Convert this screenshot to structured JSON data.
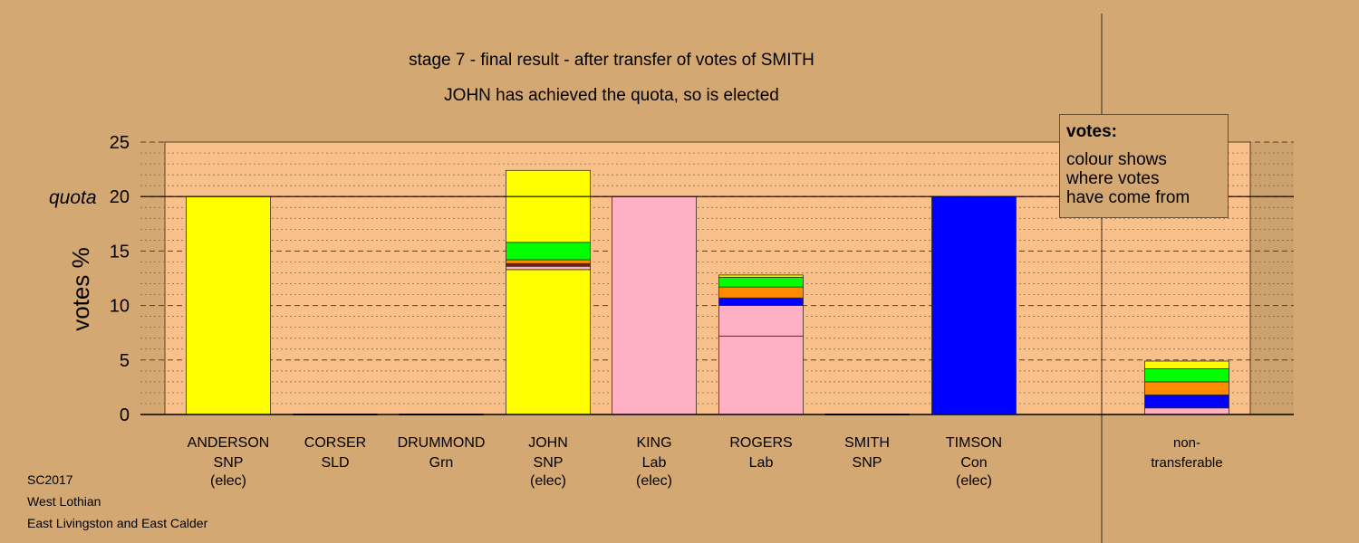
{
  "titles": {
    "line1": "stage 7 - final result - after transfer of votes of SMITH",
    "line2": "JOHN has achieved the quota, so is elected"
  },
  "legend": {
    "title": "votes:",
    "lines": [
      "colour shows",
      "where votes",
      "have come from"
    ]
  },
  "footer": {
    "line1": "SC2017",
    "line2": "West Lothian",
    "line3": "East Livingston and East Calder"
  },
  "colors": {
    "background": "#d4a873",
    "plot_background": "#f8c08a",
    "snp": "#ffff00",
    "lab": "#ffb0c4",
    "con": "#0000ff",
    "grn": "#00ff00",
    "sld": "#ff8c00",
    "other": "#8b1a1a"
  },
  "chart_data": {
    "type": "bar",
    "stacked": true,
    "ylabel": "votes %",
    "ylim": [
      0,
      25
    ],
    "yticks": [
      0,
      5,
      10,
      15,
      20,
      25
    ],
    "quota": {
      "value": 20,
      "label": "quota"
    },
    "grid": true,
    "legend_position": "top-right",
    "candidates": [
      {
        "name": "ANDERSON",
        "party": "SNP",
        "status": "(elec)",
        "segments": [
          {
            "color": "snp",
            "value": 20.0
          }
        ]
      },
      {
        "name": "CORSER",
        "party": "SLD",
        "status": "",
        "segments": []
      },
      {
        "name": "DRUMMOND",
        "party": "Grn",
        "status": "",
        "segments": []
      },
      {
        "name": "JOHN",
        "party": "SNP",
        "status": "(elec)",
        "segments": [
          {
            "color": "snp",
            "value": 13.3
          },
          {
            "color": "lab",
            "value": 0.3
          },
          {
            "color": "other",
            "value": 0.2
          },
          {
            "color": "con",
            "value": 0.05
          },
          {
            "color": "sld",
            "value": 0.35
          },
          {
            "color": "grn",
            "value": 1.6
          },
          {
            "color": "snp",
            "value": 6.6
          }
        ]
      },
      {
        "name": "KING",
        "party": "Lab",
        "status": "(elec)",
        "segments": [
          {
            "color": "lab",
            "value": 20.0
          }
        ]
      },
      {
        "name": "ROGERS",
        "party": "Lab",
        "status": "",
        "segments": [
          {
            "color": "lab",
            "value": 7.2
          },
          {
            "color": "lab",
            "value": 2.8
          },
          {
            "color": "con",
            "value": 0.7
          },
          {
            "color": "sld",
            "value": 1.0
          },
          {
            "color": "grn",
            "value": 0.9
          },
          {
            "color": "snp",
            "value": 0.2
          }
        ]
      },
      {
        "name": "SMITH",
        "party": "SNP",
        "status": "",
        "segments": []
      },
      {
        "name": "TIMSON",
        "party": "Con",
        "status": "(elec)",
        "segments": [
          {
            "color": "con",
            "value": 20.0
          }
        ]
      }
    ],
    "nontransferable": {
      "label_line1": "non-",
      "label_line2": "transferable",
      "segments": [
        {
          "color": "lab",
          "value": 0.6
        },
        {
          "color": "con",
          "value": 1.2
        },
        {
          "color": "sld",
          "value": 1.2
        },
        {
          "color": "grn",
          "value": 1.2
        },
        {
          "color": "snp",
          "value": 0.7
        }
      ]
    }
  }
}
